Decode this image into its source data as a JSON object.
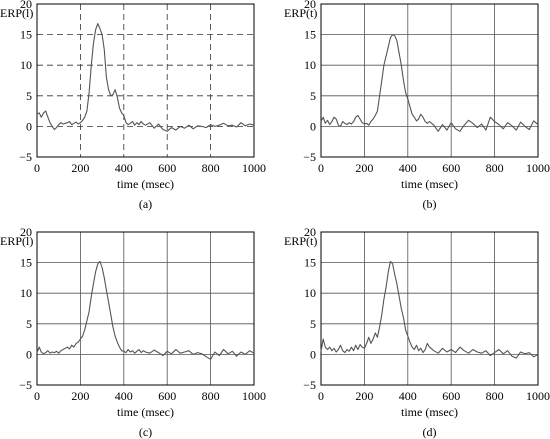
{
  "chart_data": [
    {
      "type": "line",
      "ylabel": "ERP(l)",
      "xlabel": "time (msec)",
      "caption": "(a)",
      "xlim": [
        0,
        1000
      ],
      "ylim": [
        -5,
        20
      ],
      "xticks": [
        "0",
        "200",
        "400",
        "600",
        "800",
        "1000"
      ],
      "yticks": [
        "-5",
        "0",
        "5",
        "10",
        "15",
        "20"
      ],
      "grid": "dashed",
      "series": [
        {
          "x": [
            0,
            10,
            20,
            30,
            40,
            50,
            60,
            70,
            80,
            90,
            100,
            110,
            120,
            130,
            140,
            150,
            160,
            170,
            180,
            190,
            200,
            210,
            220,
            230,
            240,
            250,
            260,
            270,
            280,
            290,
            300,
            310,
            320,
            330,
            340,
            350,
            360,
            370,
            380,
            390,
            400,
            410,
            420,
            430,
            440,
            450,
            460,
            470,
            480,
            490,
            500,
            520,
            540,
            560,
            580,
            600,
            620,
            640,
            660,
            680,
            700,
            720,
            740,
            760,
            780,
            800,
            820,
            840,
            860,
            880,
            900,
            920,
            940,
            960,
            980,
            1000
          ],
          "y": [
            2,
            2.2,
            1.5,
            2.2,
            2.5,
            1.5,
            0.6,
            0,
            -0.5,
            -0.2,
            0.3,
            0.6,
            0.4,
            0.5,
            0.6,
            0.8,
            0.3,
            0.5,
            0.7,
            0.4,
            0.6,
            1,
            1.5,
            2.5,
            5.5,
            10,
            13.5,
            15.8,
            16.8,
            16,
            15,
            12.5,
            8,
            6,
            5,
            5.2,
            6,
            4.8,
            3,
            2.2,
            1.8,
            0.6,
            0.3,
            0.5,
            0.8,
            0.2,
            0.6,
            0.3,
            0.8,
            0.4,
            0.2,
            0.6,
            -0.3,
            0.4,
            -0.5,
            -0.8,
            -0.2,
            -0.6,
            0,
            -0.3,
            0.2,
            -0.4,
            0.1,
            0,
            -0.2,
            0.3,
            0,
            0.2,
            0.5,
            0.1,
            0.2,
            -0.1,
            0.6,
            0.1,
            0.4,
            0.2
          ]
        }
      ]
    },
    {
      "type": "line",
      "ylabel": "ERP(t)",
      "xlabel": "time (msec)",
      "caption": "(b)",
      "xlim": [
        0,
        1000
      ],
      "ylim": [
        -5,
        20
      ],
      "xticks": [
        "0",
        "200",
        "400",
        "600",
        "800",
        "1000"
      ],
      "yticks": [
        "-5",
        "0",
        "5",
        "10",
        "15",
        "20"
      ],
      "grid": "solid",
      "series": [
        {
          "x": [
            0,
            10,
            20,
            30,
            40,
            50,
            60,
            70,
            80,
            90,
            100,
            110,
            120,
            130,
            140,
            150,
            160,
            170,
            180,
            190,
            200,
            210,
            220,
            230,
            240,
            250,
            260,
            270,
            280,
            290,
            300,
            310,
            320,
            330,
            340,
            350,
            360,
            370,
            380,
            390,
            400,
            410,
            420,
            430,
            440,
            450,
            460,
            470,
            480,
            490,
            500,
            520,
            540,
            560,
            580,
            600,
            620,
            640,
            660,
            680,
            700,
            720,
            740,
            760,
            780,
            800,
            820,
            840,
            860,
            880,
            900,
            920,
            940,
            960,
            980,
            1000
          ],
          "y": [
            0.8,
            1.5,
            0.5,
            1,
            0.3,
            0.8,
            1.5,
            1.2,
            0.2,
            0,
            0.8,
            0.5,
            0.3,
            0.6,
            0.4,
            0.8,
            1.5,
            1.8,
            1.2,
            0.6,
            0.4,
            0.5,
            0.2,
            0.8,
            1.2,
            1.8,
            2.5,
            5,
            7.5,
            10,
            11.5,
            13,
            14.5,
            15,
            14.8,
            14,
            12,
            10,
            7.5,
            5.5,
            4.5,
            3.2,
            2,
            1.5,
            0.9,
            1.2,
            2,
            1.5,
            0.8,
            0.5,
            0.8,
            0.2,
            -0.8,
            0.3,
            -0.6,
            0.6,
            -0.4,
            -0.8,
            0.2,
            1,
            0.5,
            -0.2,
            0.4,
            -0.6,
            1.5,
            0.8,
            0.3,
            -0.4,
            0.6,
            0.1,
            -0.6,
            0.7,
            0,
            -0.5,
            0.9,
            0.3
          ]
        }
      ]
    },
    {
      "type": "line",
      "ylabel": "ERP(l)",
      "xlabel": "time (msec)",
      "caption": "(c)",
      "xlim": [
        0,
        1000
      ],
      "ylim": [
        -5,
        20
      ],
      "xticks": [
        "0",
        "200",
        "400",
        "600",
        "800",
        "1000"
      ],
      "yticks": [
        "-5",
        "0",
        "5",
        "10",
        "15",
        "20"
      ],
      "grid": "solid",
      "series": [
        {
          "x": [
            0,
            10,
            20,
            30,
            40,
            50,
            60,
            70,
            80,
            90,
            100,
            110,
            120,
            130,
            140,
            150,
            160,
            170,
            180,
            190,
            200,
            210,
            220,
            230,
            240,
            250,
            260,
            270,
            280,
            290,
            300,
            310,
            320,
            330,
            340,
            350,
            360,
            370,
            380,
            390,
            400,
            410,
            420,
            430,
            440,
            450,
            460,
            470,
            480,
            490,
            500,
            520,
            540,
            560,
            580,
            600,
            620,
            640,
            660,
            680,
            700,
            720,
            740,
            760,
            780,
            800,
            820,
            840,
            860,
            880,
            900,
            920,
            940,
            960,
            980,
            1000
          ],
          "y": [
            0.3,
            1.2,
            0.4,
            0.1,
            0.3,
            0.6,
            0.2,
            0.4,
            0.3,
            0.5,
            0.2,
            0.6,
            0.8,
            1,
            1.2,
            0.9,
            1.5,
            1.2,
            1.8,
            2,
            2.5,
            3,
            4,
            5.5,
            7,
            9.5,
            11.5,
            13.5,
            14.8,
            15.2,
            14.2,
            12.5,
            10.5,
            8.5,
            6.5,
            4.5,
            3,
            2,
            1.2,
            0.6,
            0.5,
            0.3,
            0.8,
            0.4,
            0.6,
            0.2,
            0.5,
            0.8,
            0.3,
            0.6,
            0.4,
            0.2,
            0.7,
            0.3,
            -0.2,
            0.5,
            0.1,
            0.8,
            0.2,
            0.4,
            0.6,
            0,
            0.3,
            0.1,
            -0.4,
            -0.8,
            0.4,
            -0.2,
            0.8,
            0.1,
            0.5,
            -0.3,
            0.4,
            0,
            0.6,
            0.2
          ]
        }
      ]
    },
    {
      "type": "line",
      "ylabel": "ERP(t)",
      "xlabel": "time (msec)",
      "caption": "(d)",
      "xlim": [
        0,
        1000
      ],
      "ylim": [
        -5,
        20
      ],
      "xticks": [
        "0",
        "200",
        "400",
        "600",
        "800",
        "1000"
      ],
      "yticks": [
        "-5",
        "0",
        "5",
        "10",
        "15",
        "20"
      ],
      "grid": "solid",
      "series": [
        {
          "x": [
            0,
            10,
            20,
            30,
            40,
            50,
            60,
            70,
            80,
            90,
            100,
            110,
            120,
            130,
            140,
            150,
            160,
            170,
            180,
            190,
            200,
            210,
            220,
            230,
            240,
            250,
            260,
            270,
            280,
            290,
            300,
            310,
            320,
            330,
            340,
            350,
            360,
            370,
            380,
            390,
            400,
            410,
            420,
            430,
            440,
            450,
            460,
            470,
            480,
            490,
            500,
            520,
            540,
            560,
            580,
            600,
            620,
            640,
            660,
            680,
            700,
            720,
            740,
            760,
            780,
            800,
            820,
            840,
            860,
            880,
            900,
            920,
            940,
            960,
            980,
            1000
          ],
          "y": [
            0.5,
            2.5,
            1.2,
            0.8,
            1.2,
            0.6,
            1,
            0.4,
            0.8,
            1.5,
            0.6,
            0.3,
            0.8,
            0.5,
            1.2,
            0.6,
            1.5,
            0.8,
            1.6,
            1.2,
            1,
            1.8,
            2.8,
            1.8,
            2.5,
            3.5,
            2.8,
            4.5,
            6.5,
            9,
            11,
            13.5,
            15.2,
            14.8,
            13,
            11.5,
            9.5,
            7.5,
            6,
            4,
            3,
            2,
            1.2,
            0.8,
            1.5,
            0.6,
            1,
            0.3,
            0.8,
            1.8,
            1.2,
            0.6,
            0.2,
            1,
            0.4,
            0.8,
            0.3,
            1.2,
            0.6,
            0.2,
            0.8,
            0.4,
            0.2,
            0.6,
            -0.2,
            0.3,
            0.8,
            0.1,
            0.6,
            -0.3,
            -0.6,
            0.4,
            0.1,
            0.3,
            -0.4,
            0
          ]
        }
      ]
    }
  ]
}
